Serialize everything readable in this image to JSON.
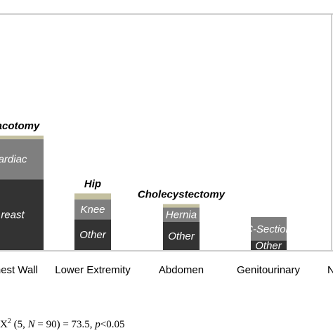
{
  "chart_data": {
    "type": "bar",
    "stacked": true,
    "categories": [
      "Chest Wall",
      "Lower Extremity",
      "Abdomen",
      "Genitourinary",
      "N"
    ],
    "ylim": [
      0,
      100
    ],
    "grid": false,
    "legend": "none",
    "colors": {
      "bottom": "#333333",
      "middle": "#7f7f7f",
      "top": "#c4c0a0",
      "frame": "#bfbfbf"
    },
    "bars": [
      {
        "category": "Chest Wall",
        "segments": [
          {
            "label": "reast",
            "value": 30,
            "color": "bottom"
          },
          {
            "label": "ardiac",
            "value": 17,
            "color": "middle"
          },
          {
            "label": "",
            "value": 1.5,
            "color": "top"
          }
        ],
        "top_label": "oracotomy"
      },
      {
        "category": "Lower Extremity",
        "segments": [
          {
            "label": "Other",
            "value": 13,
            "color": "bottom"
          },
          {
            "label": "Knee",
            "value": 8.5,
            "color": "middle"
          },
          {
            "label": "",
            "value": 2.5,
            "color": "top"
          }
        ],
        "top_label": "Hip"
      },
      {
        "category": "Abdomen",
        "segments": [
          {
            "label": "Other",
            "value": 12,
            "color": "bottom"
          },
          {
            "label": "Hernia",
            "value": 6,
            "color": "middle"
          },
          {
            "label": "",
            "value": 1.5,
            "color": "top"
          }
        ],
        "top_label": "Cholecystectomy"
      },
      {
        "category": "Genitourinary",
        "segments": [
          {
            "label": "Other",
            "value": 4,
            "color": "bottom"
          },
          {
            "label": "C-Section",
            "value": 10,
            "color": "middle"
          }
        ],
        "top_label": ""
      },
      {
        "category": "N",
        "segments": [],
        "top_label": ""
      }
    ]
  },
  "stat_note": {
    "chi": "X",
    "exp": "2",
    "open": " (5, ",
    "n": "N",
    "mid": " = 90) = 73.5, ",
    "p": "p",
    "tail": "<0.05"
  }
}
